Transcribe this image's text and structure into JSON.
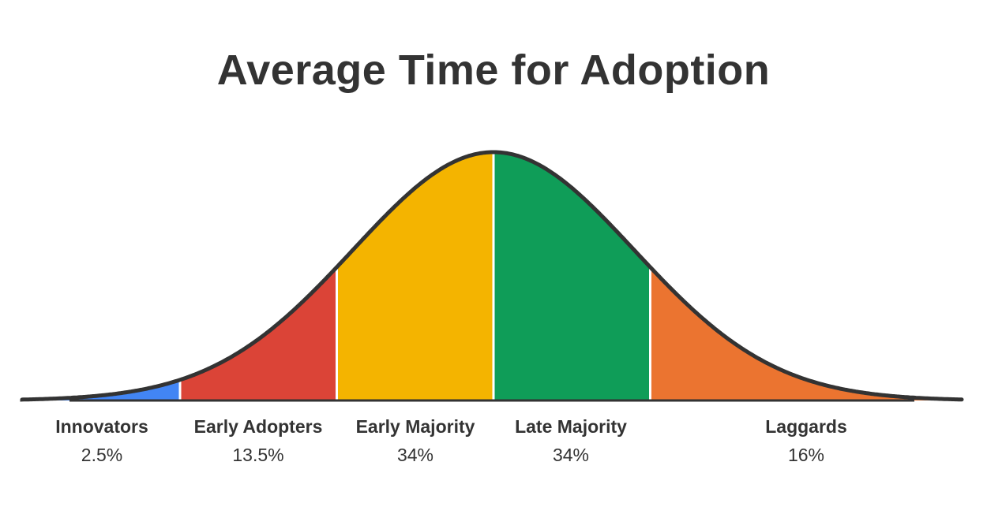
{
  "chart_data": {
    "type": "area",
    "title": "Average Time for Adoption",
    "categories": [
      "Innovators",
      "Early Adopters",
      "Early Majority",
      "Late Majority",
      "Laggards"
    ],
    "values": [
      2.5,
      13.5,
      34,
      34,
      16
    ],
    "value_labels": [
      "2.5%",
      "13.5%",
      "34%",
      "34%",
      "16%"
    ],
    "boundaries_sd": [
      -2,
      -1,
      0,
      1
    ],
    "colors": [
      "#4285F4",
      "#DB4437",
      "#F4B400",
      "#0F9D58",
      "#EB7430"
    ],
    "curve_color": "#333333",
    "distribution": "normal",
    "grid": false,
    "legend": "none"
  }
}
